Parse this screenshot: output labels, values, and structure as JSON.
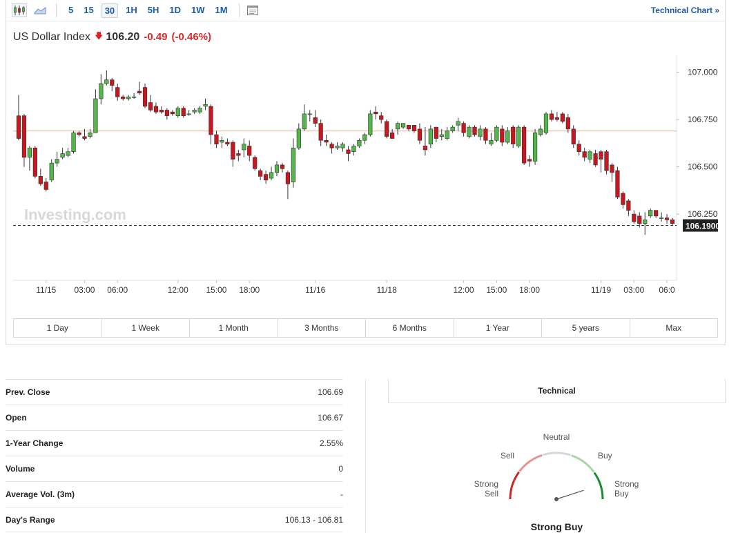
{
  "toolbar": {
    "intervals": [
      "5",
      "15",
      "30",
      "1H",
      "5H",
      "1D",
      "1W",
      "1M"
    ],
    "active_interval": "30",
    "technical_chart_link": "Technical Chart »"
  },
  "instrument": {
    "name": "US Dollar Index",
    "last": "106.20",
    "change": "-0.49",
    "change_pct": "(-0.46%)",
    "direction": "down"
  },
  "chart_data": {
    "type": "candlestick",
    "title": "",
    "y_ticks": [
      "107.0000",
      "106.7500",
      "106.5000",
      "106.2500"
    ],
    "y_tick_values": [
      107.0,
      106.75,
      106.5,
      106.25
    ],
    "ylim": [
      105.9,
      107.09
    ],
    "current_price_label": "106.1900",
    "current_price": 106.19,
    "reference_line": 106.69,
    "x_tick_labels": [
      {
        "label": "11/15",
        "index": 5
      },
      {
        "label": "03:00",
        "index": 12
      },
      {
        "label": "06:00",
        "index": 18
      },
      {
        "label": "12:00",
        "index": 29
      },
      {
        "label": "15:00",
        "index": 36
      },
      {
        "label": "18:00",
        "index": 42
      },
      {
        "label": "11/16",
        "index": 54
      },
      {
        "label": "11/18",
        "index": 67
      },
      {
        "label": "12:00",
        "index": 81
      },
      {
        "label": "15:00",
        "index": 87
      },
      {
        "label": "18:00",
        "index": 93
      },
      {
        "label": "11/19",
        "index": 106
      },
      {
        "label": "03:00",
        "index": 112
      },
      {
        "label": "06:0",
        "index": 118
      }
    ],
    "candles": [
      [
        106.77,
        106.65,
        106.88,
        106.64
      ],
      [
        106.77,
        106.55,
        106.78,
        106.5
      ],
      [
        106.55,
        106.6,
        106.61,
        106.48
      ],
      [
        106.6,
        106.45,
        106.61,
        106.44
      ],
      [
        106.45,
        106.41,
        106.49,
        106.4
      ],
      [
        106.42,
        106.38,
        106.44,
        106.37
      ],
      [
        106.43,
        106.52,
        106.54,
        106.42
      ],
      [
        106.52,
        106.54,
        106.58,
        106.5
      ],
      [
        106.55,
        106.57,
        106.6,
        106.54
      ],
      [
        106.56,
        106.58,
        106.6,
        106.55
      ],
      [
        106.58,
        106.68,
        106.69,
        106.57
      ],
      [
        106.68,
        106.67,
        106.69,
        106.66
      ],
      [
        106.66,
        106.65,
        106.7,
        106.64
      ],
      [
        106.66,
        106.68,
        106.7,
        106.65
      ],
      [
        106.68,
        106.86,
        106.91,
        106.68
      ],
      [
        106.86,
        106.94,
        106.99,
        106.83
      ],
      [
        106.94,
        106.96,
        107.01,
        106.93
      ],
      [
        106.96,
        106.93,
        106.97,
        106.9
      ],
      [
        106.92,
        106.87,
        106.94,
        106.85
      ],
      [
        106.87,
        106.86,
        106.88,
        106.85
      ],
      [
        106.86,
        106.87,
        106.88,
        106.85
      ],
      [
        106.87,
        106.87,
        106.89,
        106.86
      ],
      [
        106.9,
        106.89,
        106.95,
        106.88
      ],
      [
        106.92,
        106.82,
        106.94,
        106.81
      ],
      [
        106.84,
        106.8,
        106.88,
        106.79
      ],
      [
        106.82,
        106.79,
        106.84,
        106.78
      ],
      [
        106.8,
        106.79,
        106.82,
        106.78
      ],
      [
        106.8,
        106.77,
        106.81,
        106.75
      ],
      [
        106.79,
        106.78,
        106.8,
        106.77
      ],
      [
        106.77,
        106.81,
        106.82,
        106.76
      ],
      [
        106.81,
        106.77,
        106.82,
        106.76
      ],
      [
        106.78,
        106.78,
        106.8,
        106.77
      ],
      [
        106.79,
        106.8,
        106.81,
        106.78
      ],
      [
        106.79,
        106.81,
        106.82,
        106.78
      ],
      [
        106.82,
        106.83,
        106.86,
        106.8
      ],
      [
        106.82,
        106.67,
        106.83,
        106.62
      ],
      [
        106.67,
        106.62,
        106.69,
        106.6
      ],
      [
        106.63,
        106.64,
        106.66,
        106.6
      ],
      [
        106.63,
        106.62,
        106.65,
        106.61
      ],
      [
        106.63,
        106.54,
        106.64,
        106.5
      ],
      [
        106.57,
        106.56,
        106.59,
        106.53
      ],
      [
        106.59,
        106.62,
        106.65,
        106.55
      ],
      [
        106.61,
        106.56,
        106.64,
        106.53
      ],
      [
        106.55,
        106.49,
        106.56,
        106.48
      ],
      [
        106.48,
        106.45,
        106.49,
        106.43
      ],
      [
        106.46,
        106.43,
        106.48,
        106.41
      ],
      [
        106.44,
        106.47,
        106.5,
        106.43
      ],
      [
        106.47,
        106.51,
        106.53,
        106.45
      ],
      [
        106.51,
        106.49,
        106.52,
        106.47
      ],
      [
        106.47,
        106.41,
        106.48,
        106.33
      ],
      [
        106.42,
        106.6,
        106.65,
        106.39
      ],
      [
        106.6,
        106.7,
        106.73,
        106.59
      ],
      [
        106.7,
        106.78,
        106.83,
        106.69
      ],
      [
        106.78,
        106.78,
        106.8,
        106.74
      ],
      [
        106.76,
        106.73,
        106.8,
        106.71
      ],
      [
        106.73,
        106.64,
        106.75,
        106.61
      ],
      [
        106.64,
        106.63,
        106.67,
        106.61
      ],
      [
        106.62,
        106.6,
        106.63,
        106.57
      ],
      [
        106.6,
        106.61,
        106.63,
        106.59
      ],
      [
        106.6,
        106.62,
        106.63,
        106.58
      ],
      [
        106.59,
        106.57,
        106.61,
        106.53
      ],
      [
        106.58,
        106.61,
        106.62,
        106.56
      ],
      [
        106.61,
        106.64,
        106.65,
        106.6
      ],
      [
        106.64,
        106.67,
        106.68,
        106.62
      ],
      [
        106.67,
        106.78,
        106.8,
        106.66
      ],
      [
        106.79,
        106.78,
        106.82,
        106.75
      ],
      [
        106.77,
        106.75,
        106.79,
        106.73
      ],
      [
        106.74,
        106.66,
        106.75,
        106.65
      ],
      [
        106.68,
        106.65,
        106.7,
        106.65
      ],
      [
        106.7,
        106.73,
        106.74,
        106.67
      ],
      [
        106.71,
        106.73,
        106.73,
        106.7
      ],
      [
        106.72,
        106.7,
        106.72,
        106.69
      ],
      [
        106.72,
        106.69,
        106.72,
        106.68
      ],
      [
        106.7,
        106.64,
        106.73,
        106.62
      ],
      [
        106.61,
        106.59,
        106.71,
        106.56
      ],
      [
        106.62,
        106.7,
        106.72,
        106.6
      ],
      [
        106.71,
        106.65,
        106.71,
        106.63
      ],
      [
        106.66,
        106.67,
        106.7,
        106.64
      ],
      [
        106.65,
        106.69,
        106.71,
        106.64
      ],
      [
        106.69,
        106.71,
        106.72,
        106.68
      ],
      [
        106.72,
        106.74,
        106.76,
        106.69
      ],
      [
        106.73,
        106.68,
        106.74,
        106.66
      ],
      [
        106.66,
        106.71,
        106.72,
        106.65
      ],
      [
        106.71,
        106.67,
        106.72,
        106.66
      ],
      [
        106.66,
        106.7,
        106.72,
        106.64
      ],
      [
        106.7,
        106.64,
        106.71,
        106.62
      ],
      [
        106.62,
        106.64,
        106.68,
        106.61
      ],
      [
        106.64,
        106.71,
        106.72,
        106.63
      ],
      [
        106.7,
        106.63,
        106.72,
        106.61
      ],
      [
        106.63,
        106.69,
        106.71,
        106.62
      ],
      [
        106.71,
        106.62,
        106.72,
        106.6
      ],
      [
        106.61,
        106.71,
        106.72,
        106.6
      ],
      [
        106.71,
        106.52,
        106.72,
        106.51
      ],
      [
        106.54,
        106.53,
        106.56,
        106.5
      ],
      [
        106.53,
        106.68,
        106.7,
        106.51
      ],
      [
        106.67,
        106.7,
        106.72,
        106.66
      ],
      [
        106.68,
        106.78,
        106.79,
        106.67
      ],
      [
        106.78,
        106.75,
        106.8,
        106.74
      ],
      [
        106.76,
        106.75,
        106.79,
        106.74
      ],
      [
        106.78,
        106.74,
        106.79,
        106.73
      ],
      [
        106.76,
        106.7,
        106.78,
        106.68
      ],
      [
        106.7,
        106.62,
        106.72,
        106.6
      ],
      [
        106.62,
        106.58,
        106.64,
        106.56
      ],
      [
        106.58,
        106.55,
        106.6,
        106.53
      ],
      [
        106.54,
        106.58,
        106.59,
        106.52
      ],
      [
        106.57,
        106.51,
        106.59,
        106.5
      ],
      [
        106.58,
        106.54,
        106.59,
        106.47
      ],
      [
        106.58,
        106.48,
        106.59,
        106.46
      ],
      [
        106.51,
        106.47,
        106.52,
        106.42
      ],
      [
        106.48,
        106.34,
        106.5,
        106.33
      ],
      [
        106.36,
        106.3,
        106.37,
        106.28
      ],
      [
        106.32,
        106.27,
        106.33,
        106.24
      ],
      [
        106.25,
        106.21,
        106.27,
        106.2
      ],
      [
        106.24,
        106.2,
        106.26,
        106.18
      ],
      [
        106.2,
        106.22,
        106.26,
        106.14
      ],
      [
        106.24,
        106.27,
        106.28,
        106.23
      ],
      [
        106.27,
        106.24,
        106.27,
        106.23
      ],
      [
        106.23,
        106.23,
        106.26,
        106.21
      ],
      [
        106.23,
        106.22,
        106.25,
        106.2
      ],
      [
        106.22,
        106.2,
        106.23,
        106.19
      ]
    ],
    "grid": true,
    "watermark": "Investing.com"
  },
  "ranges": [
    "1 Day",
    "1 Week",
    "1 Month",
    "3 Months",
    "6 Months",
    "1 Year",
    "5 years",
    "Max"
  ],
  "stats": [
    {
      "label": "Prev. Close",
      "value": "106.69"
    },
    {
      "label": "Open",
      "value": "106.67"
    },
    {
      "label": "1-Year Change",
      "value": "2.55%"
    },
    {
      "label": "Volume",
      "value": "0"
    },
    {
      "label": "Average Vol. (3m)",
      "value": "-"
    },
    {
      "label": "Day's Range",
      "value": "106.13 - 106.81"
    }
  ],
  "technical": {
    "tab_label": "Technical",
    "labels": {
      "neutral": "Neutral",
      "sell": "Sell",
      "buy": "Buy",
      "strong_sell": "Strong Sell",
      "strong_buy": "Strong Buy"
    },
    "result": "Strong Buy",
    "needle_level": 0.9
  },
  "colors": {
    "up": "#54b749",
    "down": "#c8171e",
    "accent": "#1c5aa8",
    "change_red": "#d92b2b",
    "ref_line": "#f3c7b8",
    "gauge_strong_sell": "#c12b2b",
    "gauge_sell": "#e49494",
    "gauge_neutral": "#d7d7d7",
    "gauge_buy": "#a9d6a4",
    "gauge_strong_buy": "#1b8a2e"
  }
}
